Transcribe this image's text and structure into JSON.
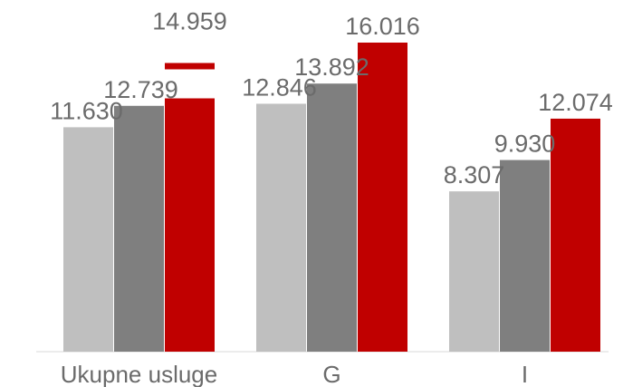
{
  "chart_data": {
    "type": "bar",
    "categories": [
      "Ukupne usluge",
      "G",
      "I"
    ],
    "series": [
      {
        "values": [
          11630,
          12846,
          8307
        ],
        "labels": [
          "11.630",
          "12.846",
          "8.307"
        ],
        "color": "#bfbfbf"
      },
      {
        "values": [
          12739,
          13892,
          9930
        ],
        "labels": [
          "12.739",
          "13.892",
          "9.930"
        ],
        "color": "#7f7f7f"
      },
      {
        "values": [
          14959,
          16016,
          12074
        ],
        "labels": [
          "14.959",
          "16.016",
          "12.074"
        ],
        "color": "#c00000"
      }
    ],
    "title": "",
    "xlabel": "",
    "ylabel": "",
    "ylim": [
      0,
      16016
    ],
    "grid": false,
    "legend": "none",
    "axis_color": "#d9d9d9",
    "label_color": "#6b6b6b"
  }
}
